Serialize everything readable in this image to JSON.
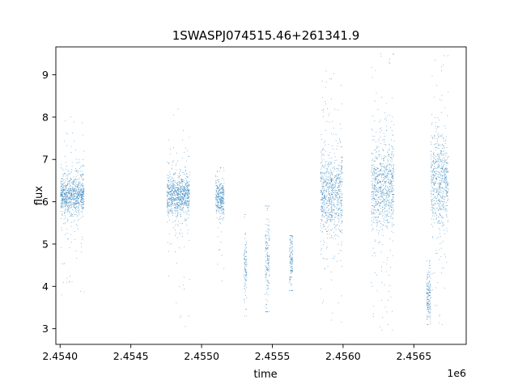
{
  "chart_data": {
    "type": "scatter",
    "title": "1SWASPJ074515.46+261341.9",
    "xlabel": "time",
    "ylabel": "flux",
    "x_offset_label": "1e6",
    "xlim": [
      2453970,
      2456870
    ],
    "ylim": [
      2.63,
      9.66
    ],
    "xticks": [
      2454000,
      2454500,
      2455000,
      2455500,
      2456000,
      2456500
    ],
    "xtick_labels": [
      "2.4540",
      "2.4545",
      "2.4550",
      "2.4555",
      "2.4560",
      "2.4565"
    ],
    "yticks": [
      3,
      4,
      5,
      6,
      7,
      8,
      9
    ],
    "ytick_labels": [
      "3",
      "4",
      "5",
      "6",
      "7",
      "8",
      "9"
    ],
    "grid": false,
    "marker_color": "#1f77b4",
    "series": [
      {
        "seasons": [
          {
            "x_start": 2454003,
            "x_end": 2454170,
            "center": 6.15,
            "spread": 0.22,
            "min": 3.65,
            "max": 8.05
          },
          {
            "x_start": 2454755,
            "x_end": 2454915,
            "center": 6.15,
            "spread": 0.22,
            "min": 2.93,
            "max": 8.2
          },
          {
            "x_start": 2455100,
            "x_end": 2455160,
            "center": 6.1,
            "spread": 0.2,
            "min": 4.05,
            "max": 6.8
          },
          {
            "x_start": 2455300,
            "x_end": 2455320,
            "center": 4.4,
            "spread": 0.35,
            "min": 3.3,
            "max": 5.7
          },
          {
            "x_start": 2455450,
            "x_end": 2455480,
            "center": 4.55,
            "spread": 0.45,
            "min": 3.4,
            "max": 5.9
          },
          {
            "x_start": 2455620,
            "x_end": 2455645,
            "center": 4.6,
            "spread": 0.35,
            "min": 3.9,
            "max": 5.2
          },
          {
            "x_start": 2455840,
            "x_end": 2455995,
            "center": 6.2,
            "spread": 0.45,
            "min": 3.0,
            "max": 9.4
          },
          {
            "x_start": 2456200,
            "x_end": 2456360,
            "center": 6.35,
            "spread": 0.5,
            "min": 2.97,
            "max": 9.5
          },
          {
            "x_start": 2456590,
            "x_end": 2456620,
            "center": 3.75,
            "spread": 0.25,
            "min": 3.1,
            "max": 4.6
          },
          {
            "x_start": 2456620,
            "x_end": 2456745,
            "center": 6.5,
            "spread": 0.5,
            "min": 3.1,
            "max": 9.45
          }
        ]
      }
    ]
  }
}
